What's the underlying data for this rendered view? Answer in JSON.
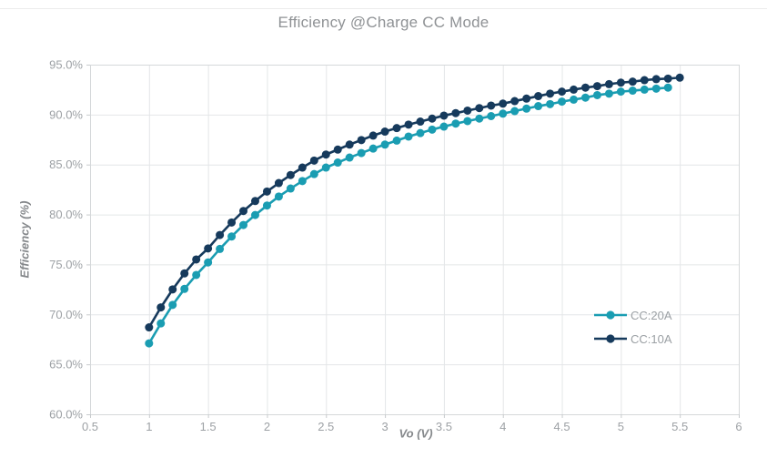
{
  "chart_data": {
    "type": "line",
    "title": "Efficiency @Charge CC Mode",
    "xlabel": "Vo (V)",
    "ylabel": "Efficiency (%)",
    "xlim": [
      0.5,
      6.0
    ],
    "ylim": [
      60.0,
      95.0
    ],
    "grid": true,
    "legend_position": "inside-right",
    "x_ticks": [
      0.5,
      1,
      1.5,
      2,
      2.5,
      3,
      3.5,
      4,
      4.5,
      5,
      5.5,
      6
    ],
    "x_tick_labels": [
      "0.5",
      "1",
      "1.5",
      "2",
      "2.5",
      "3",
      "3.5",
      "4",
      "4.5",
      "5",
      "5.5",
      "6"
    ],
    "y_ticks": [
      60,
      65,
      70,
      75,
      80,
      85,
      90,
      95
    ],
    "y_tick_labels": [
      "60.0%",
      "65.0%",
      "70.0%",
      "75.0%",
      "80.0%",
      "85.0%",
      "90.0%",
      "95.0%"
    ],
    "series": [
      {
        "name": "CC:20A",
        "color": "#1a9db2",
        "x": [
          1.0,
          1.1,
          1.2,
          1.3,
          1.4,
          1.5,
          1.6,
          1.7,
          1.8,
          1.9,
          2.0,
          2.1,
          2.2,
          2.3,
          2.4,
          2.5,
          2.6,
          2.7,
          2.8,
          2.9,
          3.0,
          3.1,
          3.2,
          3.3,
          3.4,
          3.5,
          3.6,
          3.7,
          3.8,
          3.9,
          4.0,
          4.1,
          4.2,
          4.3,
          4.4,
          4.5,
          4.6,
          4.7,
          4.8,
          4.9,
          5.0,
          5.1,
          5.2,
          5.3,
          5.4
        ],
        "y": [
          67.1,
          69.1,
          70.95,
          72.55,
          73.95,
          75.2,
          76.55,
          77.8,
          78.95,
          79.95,
          80.9,
          81.8,
          82.6,
          83.35,
          84.05,
          84.7,
          85.2,
          85.7,
          86.15,
          86.6,
          87.0,
          87.4,
          87.8,
          88.15,
          88.5,
          88.8,
          89.1,
          89.35,
          89.6,
          89.85,
          90.1,
          90.35,
          90.6,
          90.85,
          91.05,
          91.3,
          91.5,
          91.7,
          91.95,
          92.1,
          92.3,
          92.4,
          92.5,
          92.6,
          92.7
        ]
      },
      {
        "name": "CC:10A",
        "color": "#163a5c",
        "x": [
          1.0,
          1.1,
          1.2,
          1.3,
          1.4,
          1.5,
          1.6,
          1.7,
          1.8,
          1.9,
          2.0,
          2.1,
          2.2,
          2.3,
          2.4,
          2.5,
          2.6,
          2.7,
          2.8,
          2.9,
          3.0,
          3.1,
          3.2,
          3.3,
          3.4,
          3.5,
          3.6,
          3.7,
          3.8,
          3.9,
          4.0,
          4.1,
          4.2,
          4.3,
          4.4,
          4.5,
          4.6,
          4.7,
          4.8,
          4.9,
          5.0,
          5.1,
          5.2,
          5.3,
          5.4,
          5.5
        ],
        "y": [
          68.7,
          70.7,
          72.5,
          74.1,
          75.5,
          76.6,
          77.95,
          79.2,
          80.35,
          81.35,
          82.3,
          83.15,
          83.95,
          84.7,
          85.4,
          86.0,
          86.5,
          87.0,
          87.45,
          87.9,
          88.3,
          88.65,
          89.0,
          89.3,
          89.6,
          89.9,
          90.15,
          90.4,
          90.65,
          90.9,
          91.1,
          91.35,
          91.6,
          91.85,
          92.1,
          92.3,
          92.5,
          92.7,
          92.85,
          93.05,
          93.2,
          93.3,
          93.45,
          93.55,
          93.6,
          93.7
        ]
      }
    ],
    "style": {
      "grid_color": "#e4e6e8",
      "frame_color": "#d5d8da",
      "tick_color": "#c8cbcd",
      "tick_label_color": "#9da1a5",
      "title_color": "#8f9295"
    }
  }
}
